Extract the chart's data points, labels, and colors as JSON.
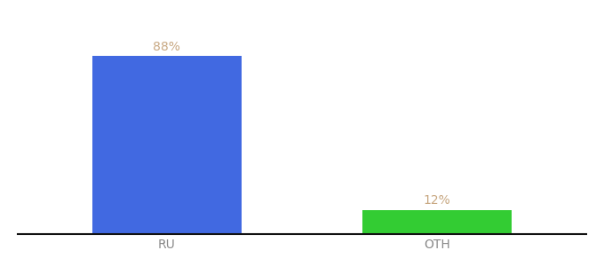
{
  "categories": [
    "RU",
    "OTH"
  ],
  "values": [
    88,
    12
  ],
  "bar_colors": [
    "#4169e1",
    "#33cc33"
  ],
  "label_texts": [
    "88%",
    "12%"
  ],
  "background_color": "#ffffff",
  "text_color": "#c8a882",
  "tick_color": "#888888",
  "bar_width": 0.55,
  "ylim": [
    0,
    100
  ],
  "xlim": [
    -0.55,
    1.55
  ]
}
